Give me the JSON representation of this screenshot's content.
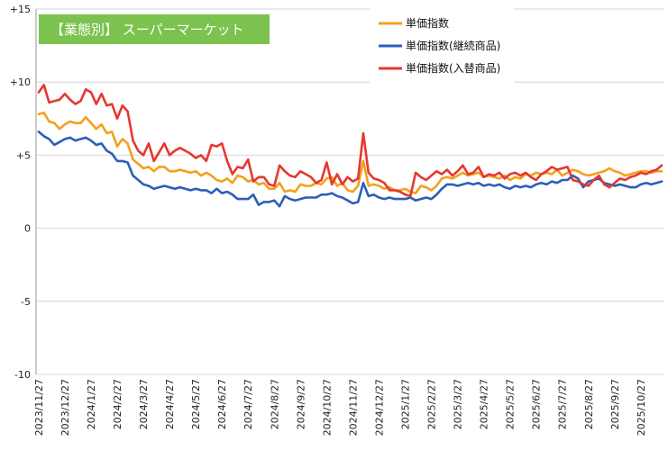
{
  "chart_data": {
    "type": "line",
    "title": "【業態別】 スーパーマーケット",
    "title_bg": "#7cc24e",
    "xlabel": "",
    "ylabel": "",
    "ylim": [
      -10,
      15
    ],
    "y_ticks": [
      {
        "value": 15,
        "label": "+15"
      },
      {
        "value": 10,
        "label": "+10"
      },
      {
        "value": 5,
        "label": "+5"
      },
      {
        "value": 0,
        "label": "0"
      },
      {
        "value": -5,
        "label": "-5"
      },
      {
        "value": -10,
        "label": "-10"
      }
    ],
    "grid": "horizontal",
    "legend_position": "top-right",
    "x_ticks": [
      {
        "index": 0,
        "label": "2023/11/27"
      },
      {
        "index": 5,
        "label": "2023/12/27"
      },
      {
        "index": 10,
        "label": "2024/1/27"
      },
      {
        "index": 15,
        "label": "2024/2/27"
      },
      {
        "index": 20,
        "label": "2024/3/27"
      },
      {
        "index": 25,
        "label": "2024/4/27"
      },
      {
        "index": 30,
        "label": "2024/5/27"
      },
      {
        "index": 35,
        "label": "2024/6/27"
      },
      {
        "index": 40,
        "label": "2024/7/27"
      },
      {
        "index": 45,
        "label": "2024/8/27"
      },
      {
        "index": 50,
        "label": "2024/9/27"
      },
      {
        "index": 55,
        "label": "2024/10/27"
      },
      {
        "index": 60,
        "label": "2024/11/27"
      },
      {
        "index": 65,
        "label": "2024/12/27"
      },
      {
        "index": 70,
        "label": "2025/1/27"
      },
      {
        "index": 75,
        "label": "2025/2/27"
      },
      {
        "index": 80,
        "label": "2025/3/27"
      },
      {
        "index": 85,
        "label": "2025/4/27"
      },
      {
        "index": 90,
        "label": "2025/5/27"
      },
      {
        "index": 95,
        "label": "2025/6/27"
      },
      {
        "index": 100,
        "label": "2025/7/27"
      },
      {
        "index": 105,
        "label": "2025/8/27"
      },
      {
        "index": 110,
        "label": "2025/9/27"
      },
      {
        "index": 115,
        "label": "2025/10/27"
      }
    ],
    "x_count": 120,
    "series": [
      {
        "name": "単価指数",
        "color": "#f4a01c",
        "values": [
          7.8,
          7.9,
          7.3,
          7.2,
          6.8,
          7.1,
          7.3,
          7.2,
          7.2,
          7.6,
          7.2,
          6.8,
          7.1,
          6.5,
          6.6,
          5.6,
          6.1,
          5.8,
          4.7,
          4.4,
          4.1,
          4.2,
          3.9,
          4.2,
          4.2,
          3.9,
          3.9,
          4.0,
          3.9,
          3.8,
          3.9,
          3.6,
          3.8,
          3.6,
          3.3,
          3.2,
          3.4,
          3.1,
          3.6,
          3.5,
          3.2,
          3.3,
          3.0,
          3.1,
          2.7,
          2.7,
          3.1,
          2.5,
          2.6,
          2.5,
          3.0,
          2.9,
          2.9,
          3.1,
          3.0,
          3.4,
          3.5,
          2.9,
          3.1,
          2.6,
          2.5,
          2.9,
          4.6,
          2.9,
          3.0,
          2.9,
          2.7,
          2.8,
          2.6,
          2.6,
          2.7,
          2.5,
          2.4,
          2.9,
          2.8,
          2.6,
          2.9,
          3.4,
          3.5,
          3.4,
          3.6,
          3.8,
          3.6,
          3.7,
          3.8,
          3.5,
          3.6,
          3.5,
          3.4,
          3.6,
          3.3,
          3.5,
          3.4,
          3.7,
          3.6,
          3.8,
          3.7,
          3.8,
          3.7,
          4.0,
          3.6,
          3.8,
          4.0,
          3.9,
          3.7,
          3.6,
          3.7,
          3.8,
          3.9,
          4.1,
          3.9,
          3.8,
          3.6,
          3.7,
          3.8,
          3.9,
          3.9,
          3.8,
          3.9,
          3.9
        ]
      },
      {
        "name": "単価指数(継続商品)",
        "color": "#2b5fb8",
        "values": [
          6.6,
          6.3,
          6.1,
          5.7,
          5.9,
          6.1,
          6.2,
          6.0,
          6.1,
          6.2,
          6.0,
          5.7,
          5.8,
          5.3,
          5.1,
          4.6,
          4.6,
          4.5,
          3.6,
          3.3,
          3.0,
          2.9,
          2.7,
          2.8,
          2.9,
          2.8,
          2.7,
          2.8,
          2.7,
          2.6,
          2.7,
          2.6,
          2.6,
          2.4,
          2.7,
          2.4,
          2.5,
          2.3,
          2.0,
          2.0,
          2.0,
          2.3,
          1.6,
          1.8,
          1.8,
          1.9,
          1.5,
          2.2,
          2.0,
          1.9,
          2.0,
          2.1,
          2.1,
          2.1,
          2.3,
          2.3,
          2.4,
          2.2,
          2.1,
          1.9,
          1.7,
          1.8,
          3.1,
          2.2,
          2.3,
          2.1,
          2.0,
          2.1,
          2.0,
          2.0,
          2.0,
          2.1,
          1.9,
          2.0,
          2.1,
          2.0,
          2.3,
          2.7,
          3.0,
          3.0,
          2.9,
          3.0,
          3.1,
          3.0,
          3.1,
          2.9,
          3.0,
          2.9,
          3.0,
          2.8,
          2.7,
          2.9,
          2.8,
          2.9,
          2.8,
          3.0,
          3.1,
          3.0,
          3.2,
          3.1,
          3.3,
          3.3,
          3.6,
          3.4,
          2.8,
          3.2,
          3.3,
          3.4,
          3.1,
          3.0,
          2.9,
          3.0,
          2.9,
          2.8,
          2.8,
          3.0,
          3.1,
          3.0,
          3.1,
          3.2
        ]
      },
      {
        "name": "単価指数(入替商品)",
        "color": "#e5382e",
        "values": [
          9.3,
          9.8,
          8.6,
          8.7,
          8.8,
          9.2,
          8.8,
          8.5,
          8.7,
          9.5,
          9.3,
          8.5,
          9.2,
          8.4,
          8.5,
          7.5,
          8.4,
          8.0,
          6.0,
          5.3,
          5.0,
          5.8,
          4.6,
          5.2,
          5.8,
          5.0,
          5.3,
          5.5,
          5.3,
          5.1,
          4.8,
          5.0,
          4.6,
          5.7,
          5.6,
          5.8,
          4.6,
          3.7,
          4.2,
          4.1,
          4.7,
          3.2,
          3.5,
          3.5,
          3.0,
          2.9,
          4.3,
          3.9,
          3.6,
          3.5,
          3.9,
          3.7,
          3.5,
          3.1,
          3.3,
          4.5,
          3.0,
          3.7,
          3.0,
          3.5,
          3.2,
          3.4,
          6.5,
          3.8,
          3.4,
          3.3,
          3.1,
          2.6,
          2.6,
          2.5,
          2.3,
          2.2,
          3.8,
          3.5,
          3.3,
          3.6,
          3.9,
          3.7,
          4.0,
          3.6,
          3.9,
          4.3,
          3.7,
          3.8,
          4.2,
          3.5,
          3.7,
          3.6,
          3.8,
          3.4,
          3.7,
          3.8,
          3.6,
          3.8,
          3.5,
          3.3,
          3.7,
          3.9,
          4.2,
          4.0,
          4.1,
          4.2,
          3.3,
          3.2,
          3.0,
          2.9,
          3.3,
          3.6,
          3.0,
          2.8,
          3.1,
          3.4,
          3.3,
          3.5,
          3.6,
          3.8,
          3.7,
          3.9,
          4.0,
          4.3
        ]
      }
    ]
  }
}
